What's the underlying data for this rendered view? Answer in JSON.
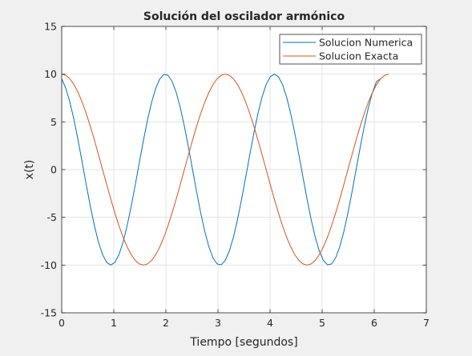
{
  "chart_data": {
    "type": "line",
    "title": "Solución del oscilador armónico",
    "xlabel": "Tiempo [segundos]",
    "ylabel": "x(t)",
    "xlim": [
      0,
      7
    ],
    "ylim": [
      -15,
      15
    ],
    "xticks": [
      0,
      1,
      2,
      3,
      4,
      5,
      6,
      7
    ],
    "yticks": [
      -15,
      -10,
      -5,
      0,
      5,
      10,
      15
    ],
    "xtick_labels": [
      "0",
      "1",
      "2",
      "3",
      "4",
      "5",
      "6",
      "7"
    ],
    "ytick_labels": [
      "-15",
      "-10",
      "-5",
      "0",
      "5",
      "10",
      "15"
    ],
    "grid": true,
    "legend_position": "top-right",
    "series": [
      {
        "name": "Solucion Numerica",
        "color": "#0072bd",
        "x": [
          0,
          0.0785,
          0.157,
          0.2355,
          0.314,
          0.3925,
          0.471,
          0.5495,
          0.628,
          0.7065,
          0.785,
          0.8635,
          0.942,
          1.0205,
          1.099,
          1.1775,
          1.256,
          1.3345,
          1.413,
          1.4915,
          1.57,
          1.6485,
          1.727,
          1.8055,
          1.884,
          1.9625,
          2.041,
          2.1195,
          2.198,
          2.2765,
          2.355,
          2.4335,
          2.512,
          2.5905,
          2.669,
          2.7475,
          2.826,
          2.9045,
          2.983,
          3.0615,
          3.14,
          3.2185,
          3.297,
          3.3755,
          3.454,
          3.5325,
          3.611,
          3.6895,
          3.768,
          3.8465,
          3.925,
          4.0035,
          4.082,
          4.1605,
          4.239,
          4.3175,
          4.396,
          4.4745,
          4.553,
          4.6315,
          4.71,
          4.7885,
          4.867,
          4.9455,
          5.024,
          5.1025,
          5.181,
          5.2595,
          5.338,
          5.4165,
          5.495,
          5.5735,
          5.652,
          5.7305,
          5.809,
          5.8875,
          5.966,
          6.0445,
          6.123
        ],
        "y": [
          9.511,
          8.526,
          7.071,
          5.225,
          3.09,
          0.785,
          -1.564,
          -3.827,
          -5.878,
          -7.604,
          -8.91,
          -9.724,
          -10.0,
          -9.724,
          -8.91,
          -7.604,
          -5.878,
          -3.827,
          -1.564,
          0.785,
          3.09,
          5.225,
          7.071,
          8.526,
          9.511,
          9.969,
          9.877,
          9.239,
          8.09,
          6.494,
          4.54,
          2.334,
          0.0,
          -2.334,
          -4.54,
          -6.494,
          -8.09,
          -9.239,
          -9.877,
          -9.969,
          -9.511,
          -8.526,
          -7.071,
          -5.225,
          -3.09,
          -0.785,
          1.564,
          3.827,
          5.878,
          7.604,
          8.91,
          9.724,
          10.0,
          9.724,
          8.91,
          7.604,
          5.878,
          3.827,
          1.564,
          -0.785,
          -3.09,
          -5.225,
          -7.071,
          -8.526,
          -9.511,
          -9.969,
          -9.877,
          -9.239,
          -8.09,
          -6.494,
          -4.54,
          -2.334,
          0.0,
          2.334,
          4.54,
          6.494,
          8.09,
          9.239,
          9.511
        ]
      },
      {
        "name": "Solucion Exacta",
        "color": "#d95319",
        "x": [
          0,
          0.0785,
          0.157,
          0.2355,
          0.314,
          0.3925,
          0.471,
          0.5495,
          0.628,
          0.7065,
          0.785,
          0.8635,
          0.942,
          1.0205,
          1.099,
          1.1775,
          1.256,
          1.3345,
          1.413,
          1.4915,
          1.57,
          1.6485,
          1.727,
          1.8055,
          1.884,
          1.9625,
          2.041,
          2.1195,
          2.198,
          2.2765,
          2.355,
          2.4335,
          2.512,
          2.5905,
          2.669,
          2.7475,
          2.826,
          2.9045,
          2.983,
          3.0615,
          3.14,
          3.2185,
          3.297,
          3.3755,
          3.454,
          3.5325,
          3.611,
          3.6895,
          3.768,
          3.8465,
          3.925,
          4.0035,
          4.082,
          4.1605,
          4.239,
          4.3175,
          4.396,
          4.4745,
          4.553,
          4.6315,
          4.71,
          4.7885,
          4.867,
          4.9455,
          5.024,
          5.1025,
          5.181,
          5.2595,
          5.338,
          5.4165,
          5.495,
          5.5735,
          5.652,
          5.7305,
          5.809,
          5.8875,
          5.966,
          6.0445,
          6.123,
          6.2015,
          6.28
        ],
        "y": [
          10.0,
          9.877,
          9.511,
          8.91,
          8.09,
          7.071,
          5.878,
          4.54,
          3.09,
          1.564,
          0.0,
          -1.564,
          -3.09,
          -4.54,
          -5.878,
          -7.071,
          -8.09,
          -8.91,
          -9.511,
          -9.877,
          -10.0,
          -9.877,
          -9.511,
          -8.91,
          -8.09,
          -7.071,
          -5.878,
          -4.54,
          -3.09,
          -1.564,
          0.0,
          1.564,
          3.09,
          4.54,
          5.878,
          7.071,
          8.09,
          8.91,
          9.511,
          9.877,
          10.0,
          9.877,
          9.511,
          8.91,
          8.09,
          7.071,
          5.878,
          4.54,
          3.09,
          1.564,
          0.0,
          -1.564,
          -3.09,
          -4.54,
          -5.878,
          -7.071,
          -8.09,
          -8.91,
          -9.511,
          -9.877,
          -10.0,
          -9.877,
          -9.511,
          -8.91,
          -8.09,
          -7.071,
          -5.878,
          -4.54,
          -3.09,
          -1.564,
          0.0,
          1.564,
          3.09,
          4.54,
          5.878,
          7.071,
          8.09,
          8.91,
          9.511,
          9.877,
          10.0
        ]
      }
    ]
  }
}
